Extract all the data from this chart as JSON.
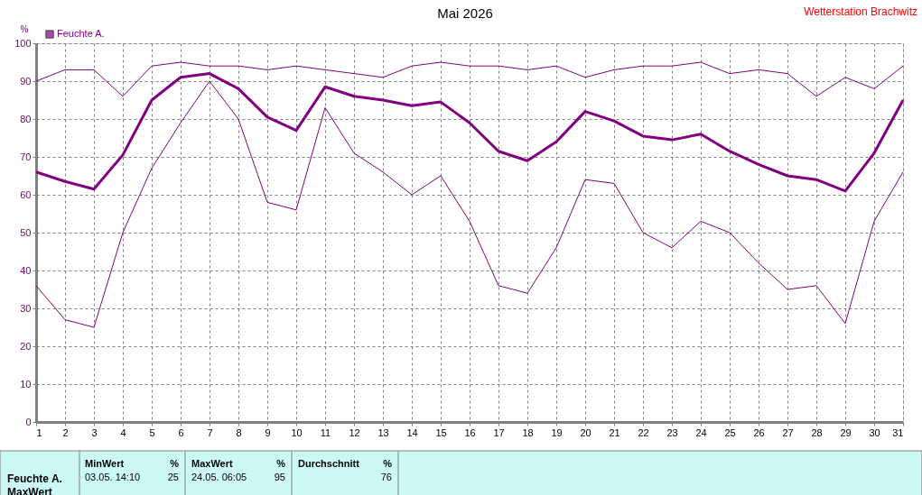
{
  "chart_data": {
    "type": "line",
    "title": "Mai 2026",
    "ylabel": "%",
    "annotations": [
      "Wetterstation Brachwitz",
      "Feuchte A.",
      "MaxWert",
      "MinWert",
      "%",
      "03.05.  14:10",
      "25",
      "MaxWert",
      "%",
      "24.05.  06:05",
      "95",
      "Durchschnitt",
      "%",
      "76"
    ],
    "x": [
      1,
      2,
      3,
      4,
      5,
      6,
      7,
      8,
      9,
      10,
      11,
      12,
      13,
      14,
      15,
      16,
      17,
      18,
      19,
      20,
      21,
      22,
      23,
      24,
      25,
      26,
      27,
      28,
      29,
      30,
      31
    ],
    "series": [
      {
        "color": "#800080",
        "values": [
          90,
          93,
          93,
          86,
          94,
          95,
          94,
          94,
          93,
          94,
          93,
          92,
          91,
          94,
          95,
          94,
          94,
          93,
          94,
          91,
          93,
          94,
          94,
          95,
          92,
          93,
          92,
          86,
          91,
          88,
          94
        ]
      },
      {
        "name": "Feuchte A.",
        "color": "#800080",
        "values": [
          66,
          63.5,
          61.5,
          70.5,
          85,
          91,
          92,
          88,
          80.5,
          77,
          88.5,
          86,
          85,
          83.5,
          84.5,
          79,
          71.5,
          69,
          74,
          82,
          79.5,
          75.5,
          74.5,
          76,
          71.5,
          68,
          65,
          64,
          61,
          71,
          85
        ]
      },
      {
        "color": "#800080",
        "values": [
          36,
          27,
          25,
          50,
          67,
          79,
          90,
          80,
          58,
          56,
          83,
          71,
          66,
          60,
          65,
          53,
          36,
          34,
          46,
          64,
          63,
          50,
          46,
          53,
          50,
          42,
          35,
          36,
          26,
          53,
          66
        ]
      }
    ],
    "xlim": [
      1,
      31
    ],
    "xticks": [
      1,
      2,
      3,
      4,
      5,
      6,
      7,
      8,
      9,
      10,
      11,
      12,
      13,
      14,
      15,
      16,
      17,
      18,
      19,
      20,
      21,
      22,
      23,
      24,
      25,
      26,
      27,
      28,
      29,
      30,
      31
    ],
    "ylim": [
      0,
      100
    ],
    "yticks": [
      0,
      10,
      20,
      30,
      40,
      50,
      60,
      70,
      80,
      90,
      100
    ],
    "grid": true,
    "legend": "top left",
    "marker": "none",
    "line_style": "solid"
  }
}
